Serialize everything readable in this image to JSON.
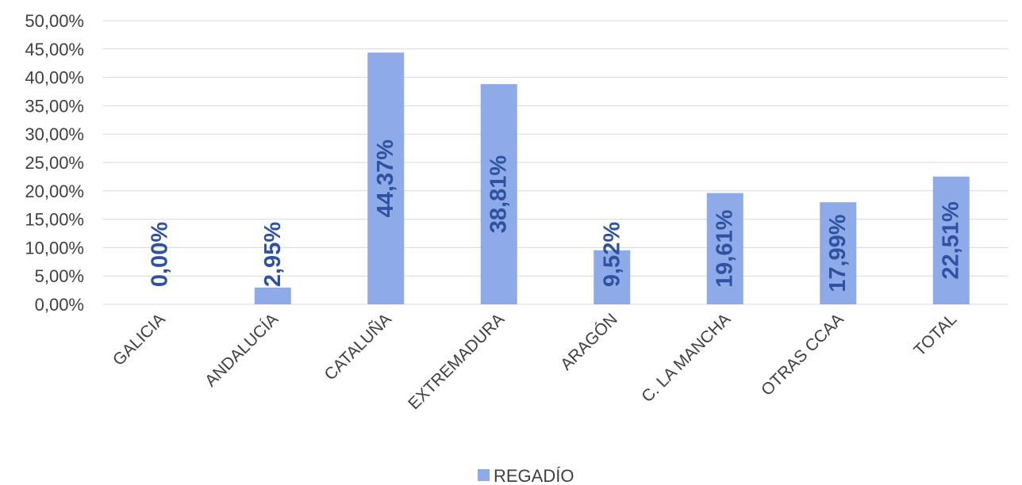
{
  "chart_data": {
    "type": "bar",
    "categories": [
      "GALICIA",
      "ANDALUCÍA",
      "CATALUÑA",
      "EXTREMADURA",
      "ARAGÓN",
      "C. LA MANCHA",
      "OTRAS CCAA",
      "TOTAL"
    ],
    "series": [
      {
        "name": "REGADÍO",
        "values": [
          0.0,
          2.95,
          44.37,
          38.81,
          9.52,
          19.61,
          17.99,
          22.51
        ],
        "data_labels": [
          "0,00%",
          "2,95%",
          "44,37%",
          "38,81%",
          "9,52%",
          "19,61%",
          "17,99%",
          "22,51%"
        ]
      }
    ],
    "yticks": [
      "0,00%",
      "5,00%",
      "10,00%",
      "15,00%",
      "20,00%",
      "25,00%",
      "30,00%",
      "35,00%",
      "40,00%",
      "45,00%",
      "50,00%"
    ],
    "ylim": [
      0,
      50
    ],
    "ytick_step": 5,
    "grid": true,
    "legend_position": "bottom",
    "colors": {
      "bar": "#8faae8",
      "data_label": "#2f52a0",
      "grid": "#d9d9d9",
      "text": "#404040"
    }
  }
}
